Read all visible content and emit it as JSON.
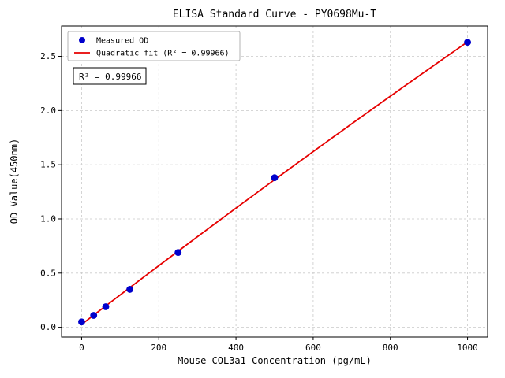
{
  "figure": {
    "background": "#ffffff"
  },
  "chart_data": {
    "type": "scatter",
    "title": "ELISA Standard Curve - PY0698Mu-T",
    "xlabel": "Mouse COL3a1 Concentration (pg/mL)",
    "ylabel": "OD Value(450nm)",
    "x": [
      0,
      31.25,
      62.5,
      125,
      250,
      500,
      1000
    ],
    "y": [
      0.05,
      0.11,
      0.19,
      0.35,
      0.69,
      1.38,
      2.63
    ],
    "x_ticks": [
      0,
      200,
      400,
      600,
      800,
      1000
    ],
    "x_tick_labels": [
      "0",
      "200",
      "400",
      "600",
      "800",
      "1000"
    ],
    "y_ticks": [
      0,
      0.5,
      1,
      1.5,
      2,
      2.5
    ],
    "y_tick_labels": [
      "0.0",
      "0.5",
      "1.0",
      "1.5",
      "2.0",
      "2.5"
    ],
    "xlim": [
      -52,
      1052
    ],
    "ylim": [
      -0.09,
      2.78
    ],
    "grid": true,
    "legend_position": "upper left",
    "legend": [
      {
        "label": "Measured OD",
        "marker": "point",
        "color": "#0000cc"
      },
      {
        "label": "Quadratic fit (R² = 0.99966)",
        "marker": "line",
        "color": "#e60000"
      }
    ],
    "annotation": "R² = 0.99966",
    "fit": {
      "kind": "quadratic",
      "r_squared": 0.99966
    },
    "colors": {
      "points": "#0000cc",
      "fit_line": "#e60000",
      "grid": "#c9c9c9",
      "axis": "#000000",
      "legend_border": "#b3b3b3"
    }
  }
}
